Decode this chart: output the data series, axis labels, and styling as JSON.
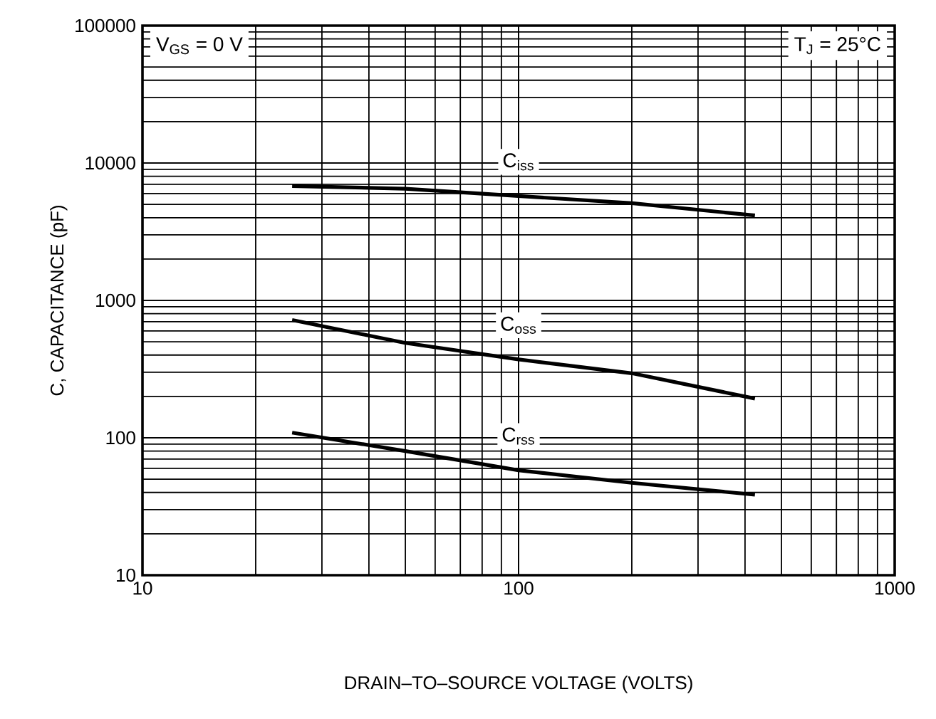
{
  "chart_data": {
    "type": "line",
    "xlabel": "DRAIN–TO–SOURCE VOLTAGE (VOLTS)",
    "ylabel": "C, CAPACITANCE (pF)",
    "log": "xy",
    "grid": true,
    "xlim": [
      10,
      1000
    ],
    "ylim": [
      10,
      100000
    ],
    "xticks": [
      10,
      100,
      1000
    ],
    "yticks": [
      10,
      100,
      1000,
      10000,
      100000
    ],
    "x": [
      25,
      50,
      100,
      200,
      425
    ],
    "series": [
      {
        "name": "C$_{iss}$",
        "color": "#000000",
        "values": [
          6800,
          6500,
          5750,
          5100,
          4150
        ]
      },
      {
        "name": "C$_{oss}$",
        "color": "#000000",
        "values": [
          720,
          490,
          372,
          295,
          193
        ]
      },
      {
        "name": "C$_{rss}$",
        "color": "#000000",
        "values": [
          109,
          80,
          58,
          47,
          38.5
        ]
      }
    ],
    "annotations": [
      "V$_{GS}$ = 0 V",
      "T$_{J}$ = 25°C"
    ],
    "marker": "none",
    "line_style": "solid"
  }
}
